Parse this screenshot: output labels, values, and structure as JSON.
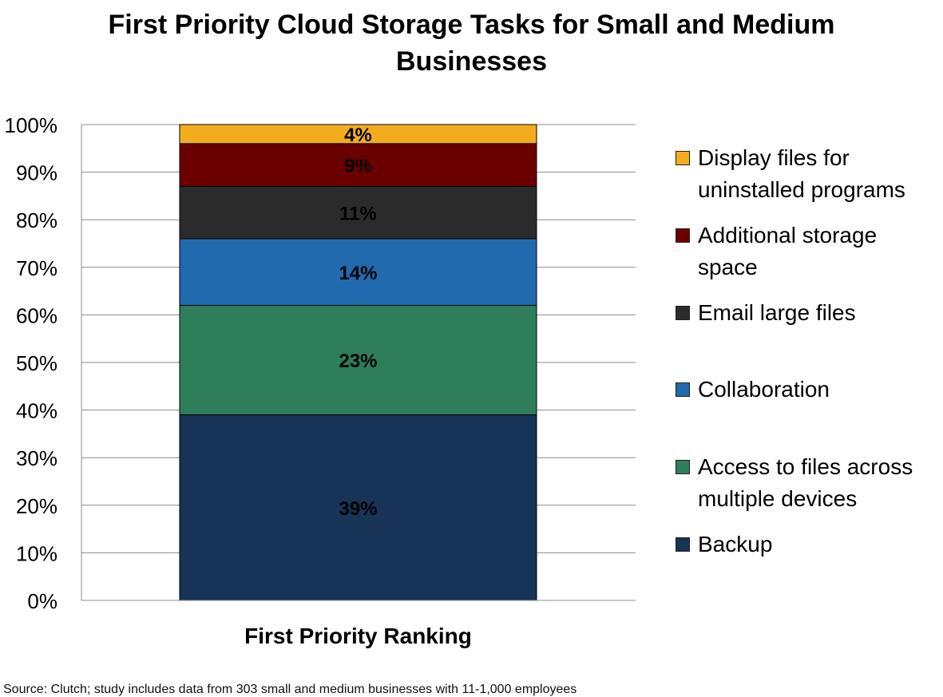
{
  "title_line1": "First Priority Cloud Storage Tasks for Small and Medium",
  "title_line2": "Businesses",
  "source": "Source: Clutch; study includes data from 303 small and medium businesses with 11-1,000 employees",
  "chart_data": {
    "type": "bar",
    "stacked": true,
    "percent_stacked": true,
    "title": "First Priority Cloud Storage Tasks for Small and Medium Businesses",
    "categories": [
      "First Priority Ranking"
    ],
    "xlabel": "",
    "ylabel": "",
    "ylim": [
      0,
      100
    ],
    "yticks": [
      "0%",
      "10%",
      "20%",
      "30%",
      "40%",
      "50%",
      "60%",
      "70%",
      "80%",
      "90%",
      "100%"
    ],
    "grid": true,
    "legend_position": "right",
    "series": [
      {
        "name": "Backup",
        "values": [
          39
        ],
        "label": "39%",
        "color": "#173356"
      },
      {
        "name": "Access to files across multiple devices",
        "values": [
          23
        ],
        "label": "23%",
        "color": "#2e7d5b"
      },
      {
        "name": "Collaboration",
        "values": [
          14
        ],
        "label": "14%",
        "color": "#216aad"
      },
      {
        "name": "Email large files",
        "values": [
          11
        ],
        "label": "11%",
        "color": "#2b2b2b"
      },
      {
        "name": "Additional storage space",
        "values": [
          9
        ],
        "label": "9%",
        "color": "#6a0000"
      },
      {
        "name": "Display files for uninstalled programs",
        "values": [
          4
        ],
        "label": "4%",
        "color": "#f2ad1e"
      }
    ]
  }
}
